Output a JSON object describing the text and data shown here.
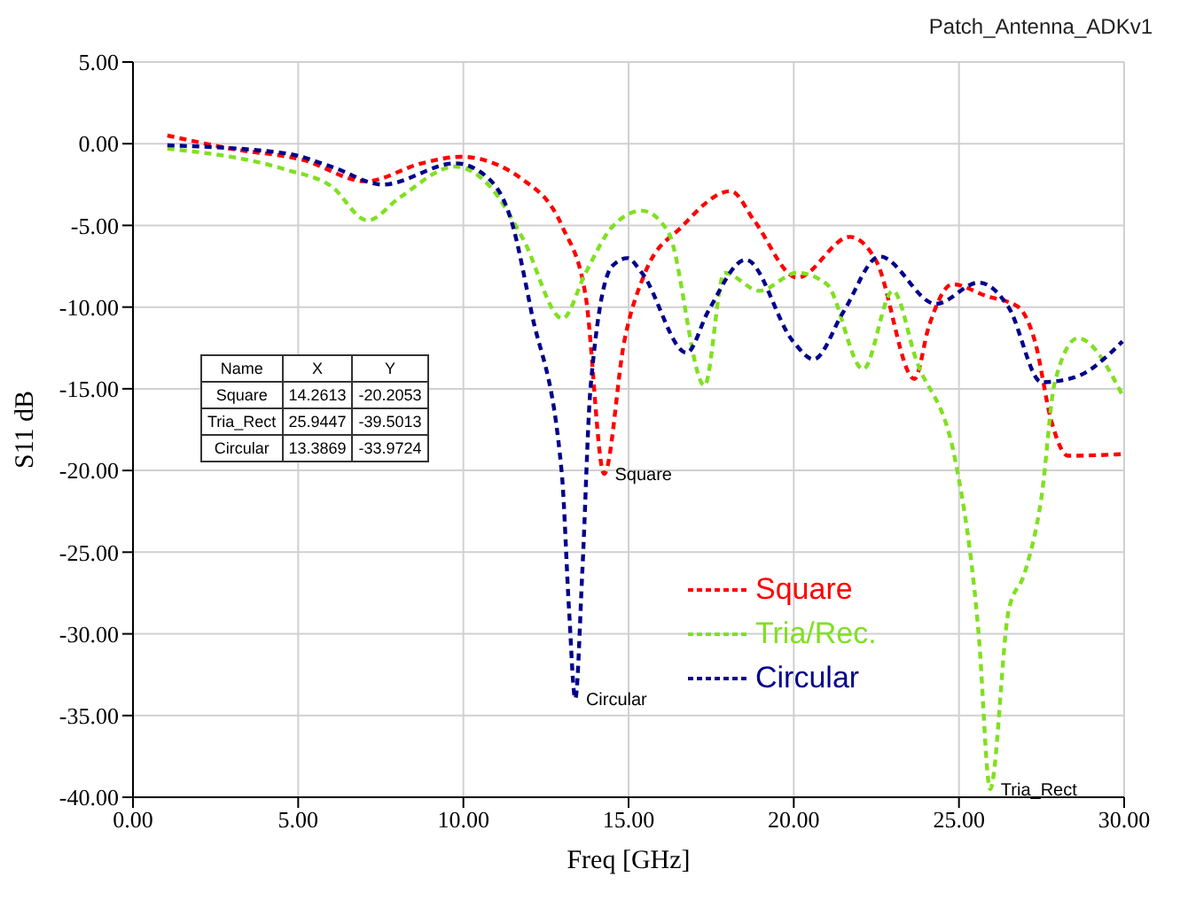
{
  "chart_data": {
    "type": "line",
    "title": "Patch_Antenna_ADKv1",
    "xlabel": "Freq [GHz]",
    "ylabel": "S11 dB",
    "xlim": [
      0,
      30
    ],
    "ylim": [
      -40,
      5
    ],
    "xticks": [
      {
        "value": 0,
        "label": "0.00"
      },
      {
        "value": 5,
        "label": "5.00"
      },
      {
        "value": 10,
        "label": "10.00"
      },
      {
        "value": 15,
        "label": "15.00"
      },
      {
        "value": 20,
        "label": "20.00"
      },
      {
        "value": 25,
        "label": "25.00"
      },
      {
        "value": 30,
        "label": "30.00"
      }
    ],
    "yticks": [
      {
        "value": -40,
        "label": "-40.00"
      },
      {
        "value": -35,
        "label": "-35.00"
      },
      {
        "value": -30,
        "label": "-30.00"
      },
      {
        "value": -25,
        "label": "-25.00"
      },
      {
        "value": -20,
        "label": "-20.00"
      },
      {
        "value": -15,
        "label": "-15.00"
      },
      {
        "value": -10,
        "label": "-10.00"
      },
      {
        "value": -5,
        "label": "-5.00"
      },
      {
        "value": 0,
        "label": "0.00"
      },
      {
        "value": 5,
        "label": "5.00"
      }
    ],
    "grid": true,
    "legend": "right",
    "line_style": "dashed",
    "marker": "none",
    "series": [
      {
        "name": "Square",
        "color": "#ff0000",
        "x": [
          1.04,
          2.95,
          5.16,
          7.04,
          8.74,
          9.92,
          11.8,
          13.0,
          13.7,
          14.2613,
          14.87,
          15.5,
          16.6,
          18.1,
          18.8,
          20.1,
          21.7,
          22.5,
          23.65,
          24.1,
          24.8,
          25.8,
          26.8,
          27.3,
          27.8,
          28.3,
          29.95
        ],
        "values": [
          0.5,
          -0.3,
          -1.0,
          -2.3,
          -1.2,
          -0.8,
          -2.2,
          -5.1,
          -9.3,
          -20.2053,
          -12.1,
          -7.9,
          -5.1,
          -2.9,
          -4.7,
          -8.2,
          -5.7,
          -7.2,
          -14.4,
          -11.1,
          -8.6,
          -9.3,
          -10.0,
          -12.1,
          -17.0,
          -19.1,
          -19.0
        ]
      },
      {
        "name": "Tria/Rec.",
        "color": "#80e020",
        "x": [
          1.04,
          4.65,
          6.0,
          7.1,
          8.07,
          9.76,
          10.8,
          11.8,
          13.0,
          13.7,
          14.5,
          15.4,
          16.2,
          17.3,
          17.9,
          18.96,
          20.1,
          21.0,
          22.1,
          23.0,
          23.7,
          24.9,
          25.6,
          25.9447,
          26.5,
          27.0,
          27.5,
          27.9,
          28.6,
          29.95
        ],
        "values": [
          -0.3,
          -1.6,
          -2.6,
          -4.7,
          -3.3,
          -1.4,
          -2.6,
          -5.8,
          -10.7,
          -7.9,
          -5.1,
          -4.1,
          -5.4,
          -14.8,
          -7.9,
          -9.0,
          -7.9,
          -8.6,
          -13.8,
          -9.0,
          -13.2,
          -19.5,
          -30.1,
          -39.5013,
          -28.6,
          -26.2,
          -21.6,
          -14.6,
          -11.9,
          -15.4
        ]
      },
      {
        "name": "Circular",
        "color": "#00008b",
        "x": [
          1.04,
          4.65,
          6.0,
          7.56,
          9.76,
          10.8,
          11.45,
          12.06,
          12.98,
          13.2,
          13.3869,
          13.6,
          13.85,
          14.5,
          14.97,
          15.4,
          16.76,
          17.4,
          18.55,
          19.98,
          20.6,
          21.5,
          22.6,
          24.3,
          25.6,
          26.5,
          27.5,
          28.5,
          29.95
        ],
        "values": [
          -0.1,
          -0.6,
          -1.4,
          -2.5,
          -1.2,
          -2.2,
          -4.7,
          -10.3,
          -20.2,
          -28.6,
          -33.9724,
          -26.2,
          -14.9,
          -7.5,
          -7.0,
          -7.9,
          -12.8,
          -10.3,
          -7.1,
          -12.1,
          -13.2,
          -10.3,
          -6.9,
          -9.8,
          -8.5,
          -10.0,
          -14.6,
          -14.3,
          -12.1
        ]
      }
    ],
    "annotations": [
      {
        "text": "Square",
        "x": 14.2613,
        "y": -20.2053
      },
      {
        "text": "Circular",
        "x": 13.3869,
        "y": -33.9724
      },
      {
        "text": "Tria_Rect",
        "x": 25.9447,
        "y": -39.5013
      },
      "Name",
      "X",
      "Y",
      "Square",
      "14.2613",
      "-20.2053",
      "Tria_Rect",
      "25.9447",
      "-39.5013",
      "Circular",
      "13.3869",
      "-33.9724"
    ]
  }
}
